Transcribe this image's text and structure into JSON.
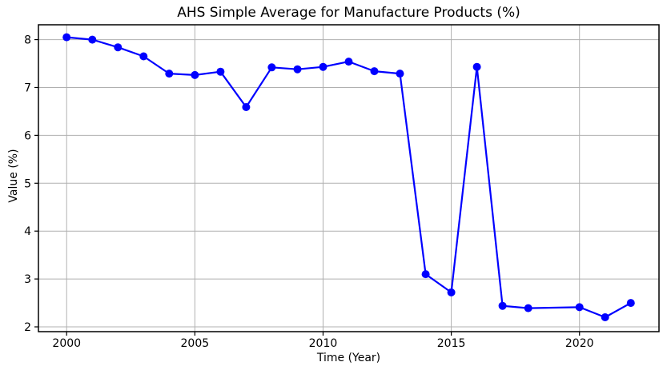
{
  "figure": {
    "title": "AHS Simple Average for Manufacture Products (%)",
    "xlabel": "Time (Year)",
    "ylabel": "Value (%)"
  },
  "chart_data": {
    "type": "line",
    "title": "AHS Simple Average for Manufacture Products (%)",
    "xlabel": "Time (Year)",
    "ylabel": "Value (%)",
    "x": [
      2000,
      2001,
      2002,
      2003,
      2004,
      2005,
      2006,
      2007,
      2008,
      2009,
      2010,
      2011,
      2012,
      2013,
      2014,
      2015,
      2016,
      2017,
      2018,
      2020,
      2021,
      2022
    ],
    "values": [
      8.05,
      8.0,
      7.84,
      7.65,
      7.29,
      7.26,
      7.33,
      6.59,
      7.42,
      7.38,
      7.43,
      7.54,
      7.34,
      7.29,
      3.1,
      2.72,
      7.43,
      2.44,
      2.39,
      2.41,
      2.2,
      2.5
    ],
    "xticks": [
      2000,
      2005,
      2010,
      2015,
      2020
    ],
    "yticks": [
      2,
      3,
      4,
      5,
      6,
      7,
      8
    ],
    "xlim": [
      1998.9,
      2023.1
    ],
    "ylim": [
      1.9,
      8.31
    ],
    "grid": true,
    "legend": null,
    "marker": "o",
    "line_color": "#0000ff"
  },
  "colors": {
    "line": "#0000ff",
    "marker": "#0000ff",
    "grid": "#b0b0b0",
    "spine": "#000000",
    "text": "#000000",
    "background": "#ffffff"
  }
}
